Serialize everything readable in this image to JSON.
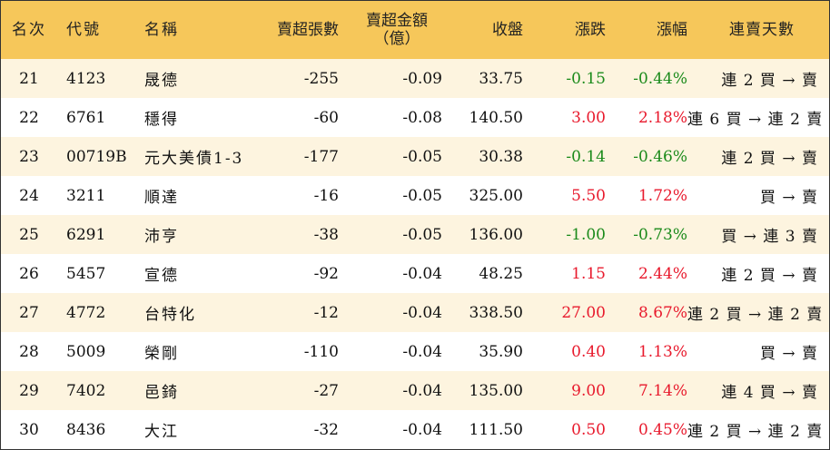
{
  "header": {
    "rank": "名次",
    "code": "代號",
    "name": "名稱",
    "net_sell_lots": "賣超張數",
    "net_sell_amount": "賣超金額",
    "net_sell_amount_unit": "（億）",
    "close": "收盤",
    "change": "漲跌",
    "change_pct": "漲幅",
    "streak": "連賣天數"
  },
  "colors": {
    "up": "#e8192c",
    "down": "#1a8a1a",
    "header_bg": "#f6c75a",
    "stripe_bg": "#fdf4df"
  },
  "rows": [
    {
      "rank": "21",
      "code": "4123",
      "name": "晟德",
      "lots": "-255",
      "amount": "-0.09",
      "close": "33.75",
      "change": "-0.15",
      "pct": "-0.44%",
      "dir": "down",
      "streak": "連 2 買 → 賣"
    },
    {
      "rank": "22",
      "code": "6761",
      "name": "穩得",
      "lots": "-60",
      "amount": "-0.08",
      "close": "140.50",
      "change": "3.00",
      "pct": "2.18%",
      "dir": "up",
      "streak": "連 6 買 → 連 2 賣"
    },
    {
      "rank": "23",
      "code": "00719B",
      "name": "元大美債1-3",
      "lots": "-177",
      "amount": "-0.05",
      "close": "30.38",
      "change": "-0.14",
      "pct": "-0.46%",
      "dir": "down",
      "streak": "連 2 買 → 賣"
    },
    {
      "rank": "24",
      "code": "3211",
      "name": "順達",
      "lots": "-16",
      "amount": "-0.05",
      "close": "325.00",
      "change": "5.50",
      "pct": "1.72%",
      "dir": "up",
      "streak": "買 → 賣"
    },
    {
      "rank": "25",
      "code": "6291",
      "name": "沛亨",
      "lots": "-38",
      "amount": "-0.05",
      "close": "136.00",
      "change": "-1.00",
      "pct": "-0.73%",
      "dir": "down",
      "streak": "買 → 連 3 賣"
    },
    {
      "rank": "26",
      "code": "5457",
      "name": "宣德",
      "lots": "-92",
      "amount": "-0.04",
      "close": "48.25",
      "change": "1.15",
      "pct": "2.44%",
      "dir": "up",
      "streak": "連 2 買 → 賣"
    },
    {
      "rank": "27",
      "code": "4772",
      "name": "台特化",
      "lots": "-12",
      "amount": "-0.04",
      "close": "338.50",
      "change": "27.00",
      "pct": "8.67%",
      "dir": "up",
      "streak": "連 2 買 → 連 2 賣"
    },
    {
      "rank": "28",
      "code": "5009",
      "name": "榮剛",
      "lots": "-110",
      "amount": "-0.04",
      "close": "35.90",
      "change": "0.40",
      "pct": "1.13%",
      "dir": "up",
      "streak": "買 → 賣"
    },
    {
      "rank": "29",
      "code": "7402",
      "name": "邑錡",
      "lots": "-27",
      "amount": "-0.04",
      "close": "135.00",
      "change": "9.00",
      "pct": "7.14%",
      "dir": "up",
      "streak": "連 4 買 → 賣"
    },
    {
      "rank": "30",
      "code": "8436",
      "name": "大江",
      "lots": "-32",
      "amount": "-0.04",
      "close": "111.50",
      "change": "0.50",
      "pct": "0.45%",
      "dir": "up",
      "streak": "連 2 買 → 連 2 賣"
    }
  ]
}
